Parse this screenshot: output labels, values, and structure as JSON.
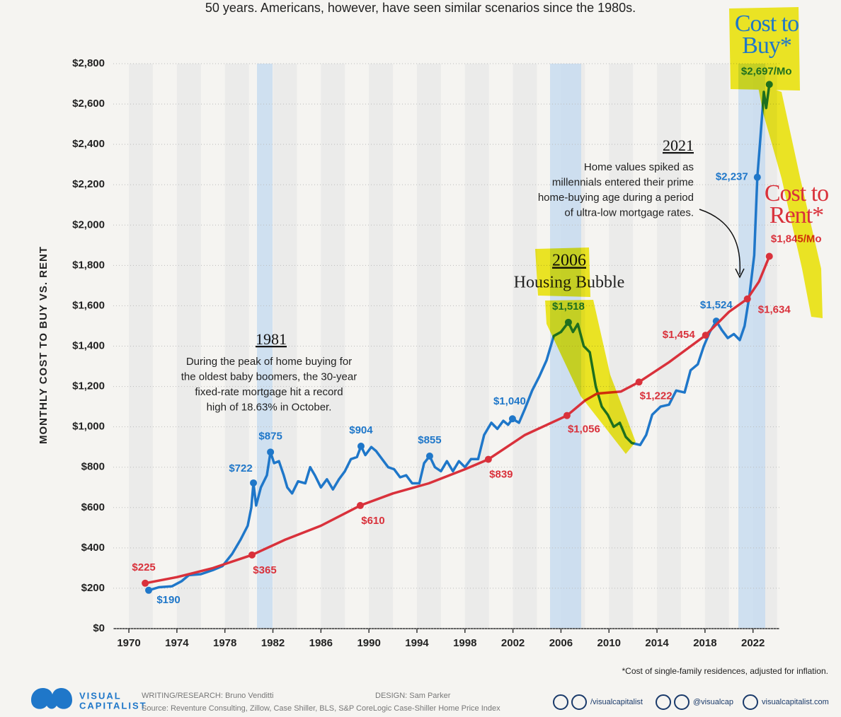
{
  "subtitle": "50 years. Americans, however, have seen similar scenarios since the 1980s.",
  "chart_data": {
    "type": "line",
    "y_axis_label": "MONTHLY COST TO BUY VS. RENT",
    "xlim": [
      1968.7,
      2024.2
    ],
    "xticks": [
      1970,
      1974,
      1978,
      1982,
      1986,
      1990,
      1994,
      1998,
      2002,
      2006,
      2010,
      2014,
      2018,
      2022
    ],
    "ylim": [
      0,
      2800
    ],
    "yticks": [
      {
        "value": 0,
        "label": "$0"
      },
      {
        "value": 200,
        "label": "$200"
      },
      {
        "value": 400,
        "label": "$400"
      },
      {
        "value": 600,
        "label": "$600"
      },
      {
        "value": 800,
        "label": "$800"
      },
      {
        "value": 1000,
        "label": "$1,000"
      },
      {
        "value": 1200,
        "label": "$1,200"
      },
      {
        "value": 1400,
        "label": "$1,400"
      },
      {
        "value": 1600,
        "label": "$1,600"
      },
      {
        "value": 1800,
        "label": "$1,800"
      },
      {
        "value": 2000,
        "label": "$2,000"
      },
      {
        "value": 2200,
        "label": "$2,200"
      },
      {
        "value": 2400,
        "label": "$2,400"
      },
      {
        "value": 2600,
        "label": "$2,600"
      },
      {
        "value": 2800,
        "label": "$2,800"
      }
    ],
    "series": [
      {
        "name": "Cost to Buy*",
        "color": "#1f77c9",
        "x": [
          1971.65,
          1972.5,
          1973.6,
          1974.4,
          1975,
          1976,
          1977,
          1977.8,
          1978.6,
          1979.3,
          1979.9,
          1980.2,
          1980.38,
          1980.6,
          1981,
          1981.5,
          1981.8,
          1982.1,
          1982.5,
          1982.9,
          1983.2,
          1983.6,
          1984.1,
          1984.7,
          1985.1,
          1985.5,
          1986,
          1986.5,
          1987,
          1987.5,
          1988,
          1988.5,
          1989,
          1989.34,
          1989.7,
          1990.2,
          1990.6,
          1991.1,
          1991.6,
          1992.1,
          1992.6,
          1993.1,
          1993.6,
          1994.2,
          1994.6,
          1995.06,
          1995.5,
          1996,
          1996.5,
          1997,
          1997.5,
          1998,
          1998.5,
          1999.1,
          1999.6,
          2000.2,
          2000.7,
          2001.2,
          2001.6,
          2001.96,
          2002.5,
          2003,
          2003.6,
          2004.2,
          2004.8,
          2005.4,
          2006,
          2006.62,
          2007,
          2007.4,
          2007.9,
          2008.4,
          2008.9,
          2009.4,
          2009.9,
          2010.4,
          2010.9,
          2011.4,
          2011.9,
          2012.6,
          2013.1,
          2013.6,
          2014.3,
          2015,
          2015.6,
          2016.3,
          2016.8,
          2017.4,
          2017.9,
          2018.4,
          2018.94,
          2019.4,
          2019.9,
          2020.4,
          2020.9,
          2021.3,
          2021.7,
          2022.1,
          2022.36,
          2022.6,
          2022.9,
          2023.1,
          2023.36
        ],
        "values": [
          190,
          205,
          210,
          235,
          265,
          270,
          290,
          310,
          370,
          440,
          510,
          600,
          722,
          610,
          700,
          760,
          875,
          820,
          830,
          760,
          700,
          670,
          730,
          720,
          800,
          760,
          700,
          740,
          690,
          740,
          780,
          840,
          850,
          904,
          860,
          900,
          880,
          840,
          800,
          790,
          750,
          760,
          720,
          720,
          820,
          855,
          800,
          780,
          830,
          780,
          830,
          800,
          840,
          840,
          960,
          1020,
          990,
          1030,
          1010,
          1040,
          1020,
          1090,
          1180,
          1250,
          1330,
          1450,
          1470,
          1518,
          1470,
          1510,
          1400,
          1370,
          1200,
          1100,
          1060,
          1000,
          1020,
          950,
          920,
          910,
          960,
          1060,
          1100,
          1110,
          1180,
          1170,
          1280,
          1310,
          1400,
          1470,
          1524,
          1480,
          1440,
          1460,
          1430,
          1500,
          1650,
          1850,
          2237,
          2420,
          2660,
          2580,
          2697
        ],
        "value_labels": [
          "$190",
          null,
          null,
          null,
          null,
          null,
          null,
          null,
          null,
          null,
          null,
          null,
          "$722",
          null,
          null,
          null,
          "$875",
          null,
          null,
          null,
          null,
          null,
          null,
          null,
          null,
          null,
          null,
          null,
          null,
          null,
          null,
          null,
          null,
          "$904",
          null,
          null,
          null,
          null,
          null,
          null,
          null,
          null,
          null,
          null,
          null,
          "$855",
          null,
          null,
          null,
          null,
          null,
          null,
          null,
          null,
          null,
          null,
          null,
          null,
          null,
          "$1,040",
          null,
          null,
          null,
          null,
          null,
          null,
          null,
          "$1,518",
          null,
          null,
          null,
          null,
          null,
          null,
          null,
          null,
          null,
          null,
          null,
          null,
          null,
          null,
          null,
          null,
          null,
          null,
          null,
          null,
          null,
          null,
          "$1,524",
          null,
          null,
          null,
          null,
          null,
          null,
          null,
          "$2,237",
          null,
          null,
          null,
          "$2,697/Mo"
        ]
      },
      {
        "name": "Cost to Rent*",
        "color": "#d9313b",
        "x": [
          1971.36,
          1974,
          1977,
          1980.26,
          1983,
          1986,
          1989.28,
          1992,
          1995,
          1998,
          1999.95,
          2003,
          2006.5,
          2008,
          2009,
          2011,
          2012.5,
          2015,
          2018.05,
          2020,
          2021.53,
          2022.5,
          2023.36
        ],
        "values": [
          225,
          255,
          300,
          365,
          440,
          510,
          610,
          670,
          720,
          790,
          839,
          960,
          1056,
          1130,
          1165,
          1175,
          1222,
          1320,
          1454,
          1570,
          1634,
          1720,
          1845
        ],
        "value_labels": [
          "$225",
          null,
          null,
          "$365",
          null,
          null,
          "$610",
          null,
          null,
          null,
          "$839",
          null,
          "$1,056",
          null,
          null,
          null,
          "$1,222",
          null,
          "$1,454",
          null,
          "$1,634",
          null,
          "$1,845/Mo"
        ]
      }
    ],
    "annotations": [
      {
        "title": "1981",
        "lines": [
          "During the peak of home buying for",
          "the oldest baby boomers, the 30-year",
          "fixed-rate mortgage hit a record",
          "high of 18.63% in October."
        ]
      },
      {
        "title": "2006",
        "lines": [
          "Housing Bubble"
        ]
      },
      {
        "title": "2021",
        "lines": [
          "Home values spiked as",
          "millennials entered their prime",
          "home-buying age during a period",
          "of ultra-low mortgage rates."
        ]
      }
    ],
    "footnote": "*Cost of single-family residences, adjusted for inflation."
  },
  "footer": {
    "brand": [
      "VISUAL",
      "CAPITALIST"
    ],
    "writing": "WRITING/RESEARCH: Bruno Venditti",
    "design": "DESIGN: Sam Parker",
    "source": "Source: Reventure Consulting, Zillow, Case Shiller, BLS,  S&P CoreLogic Case-Shiller Home Price Index",
    "social": [
      "/visualcapitalist",
      "@visualcap",
      "visualcapitalist.com"
    ]
  }
}
